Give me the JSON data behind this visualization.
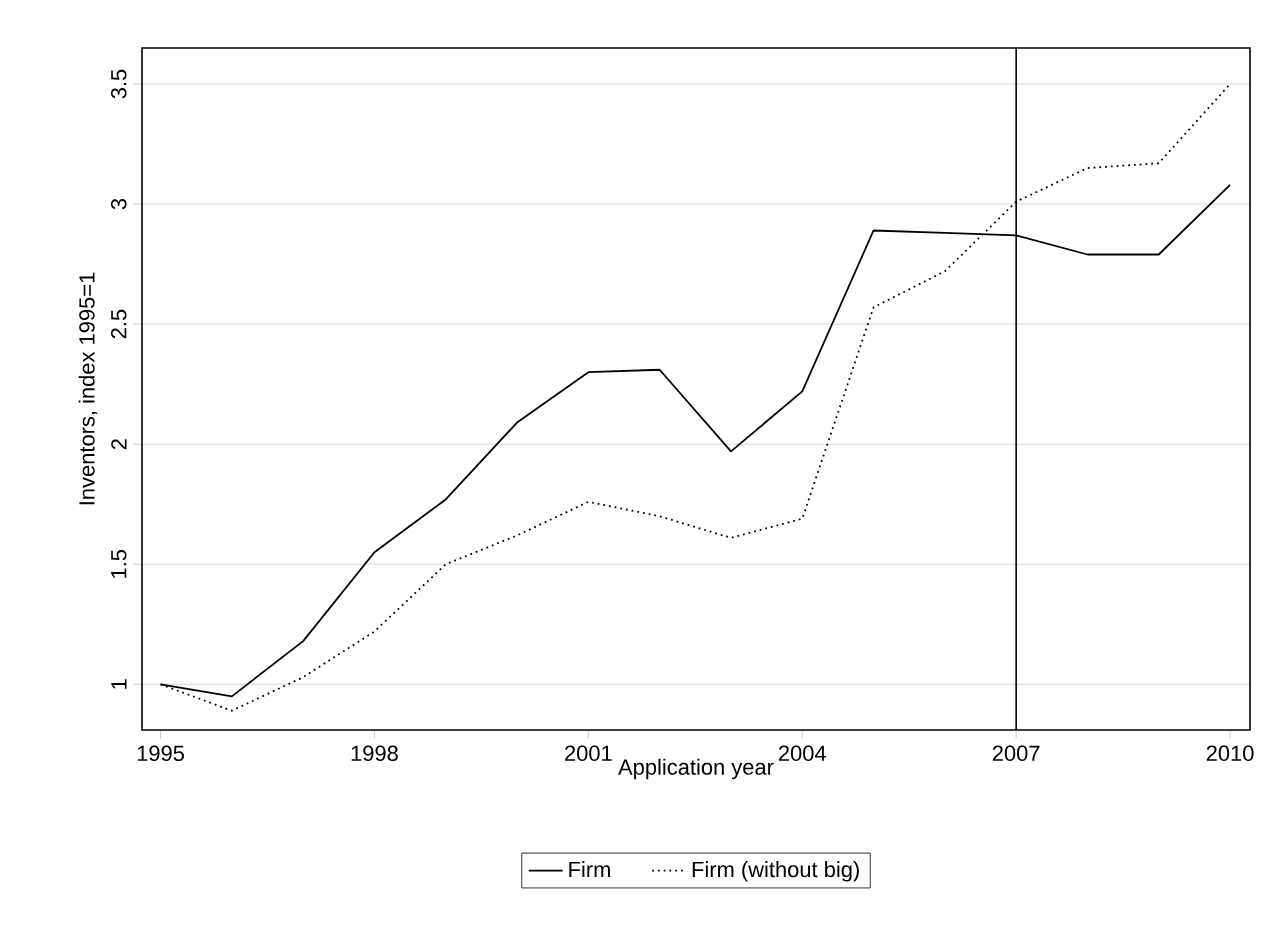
{
  "chart_data": {
    "type": "line",
    "xlabel": "Application year",
    "ylabel": "Inventors, index 1995=1",
    "x": [
      1995,
      1996,
      1997,
      1998,
      1999,
      2000,
      2001,
      2002,
      2003,
      2004,
      2005,
      2006,
      2007,
      2008,
      2009,
      2010
    ],
    "series": [
      {
        "name": "Firm",
        "color": "#000000",
        "line_style": "solid",
        "values": [
          1.0,
          0.95,
          1.18,
          1.55,
          1.77,
          2.09,
          2.3,
          2.31,
          1.97,
          2.22,
          2.89,
          2.88,
          2.87,
          2.79,
          2.79,
          3.08
        ]
      },
      {
        "name": "Firm (without big)",
        "color": "#000000",
        "line_style": "dotted",
        "values": [
          1.0,
          0.89,
          1.03,
          1.22,
          1.5,
          1.62,
          1.76,
          1.7,
          1.61,
          1.69,
          2.57,
          2.72,
          3.01,
          3.15,
          3.17,
          3.5
        ]
      }
    ],
    "xlim": [
      1994.74,
      2010.28
    ],
    "ylim": [
      0.81,
      3.65
    ],
    "xticks": [
      1995,
      1998,
      2001,
      2004,
      2007,
      2010
    ],
    "yticks": [
      1,
      1.5,
      2,
      2.5,
      3,
      3.5
    ],
    "grid": "y",
    "legend": "bottom",
    "ref_lines": [
      {
        "axis": "x",
        "value": 2007,
        "color": "#000000"
      }
    ]
  }
}
